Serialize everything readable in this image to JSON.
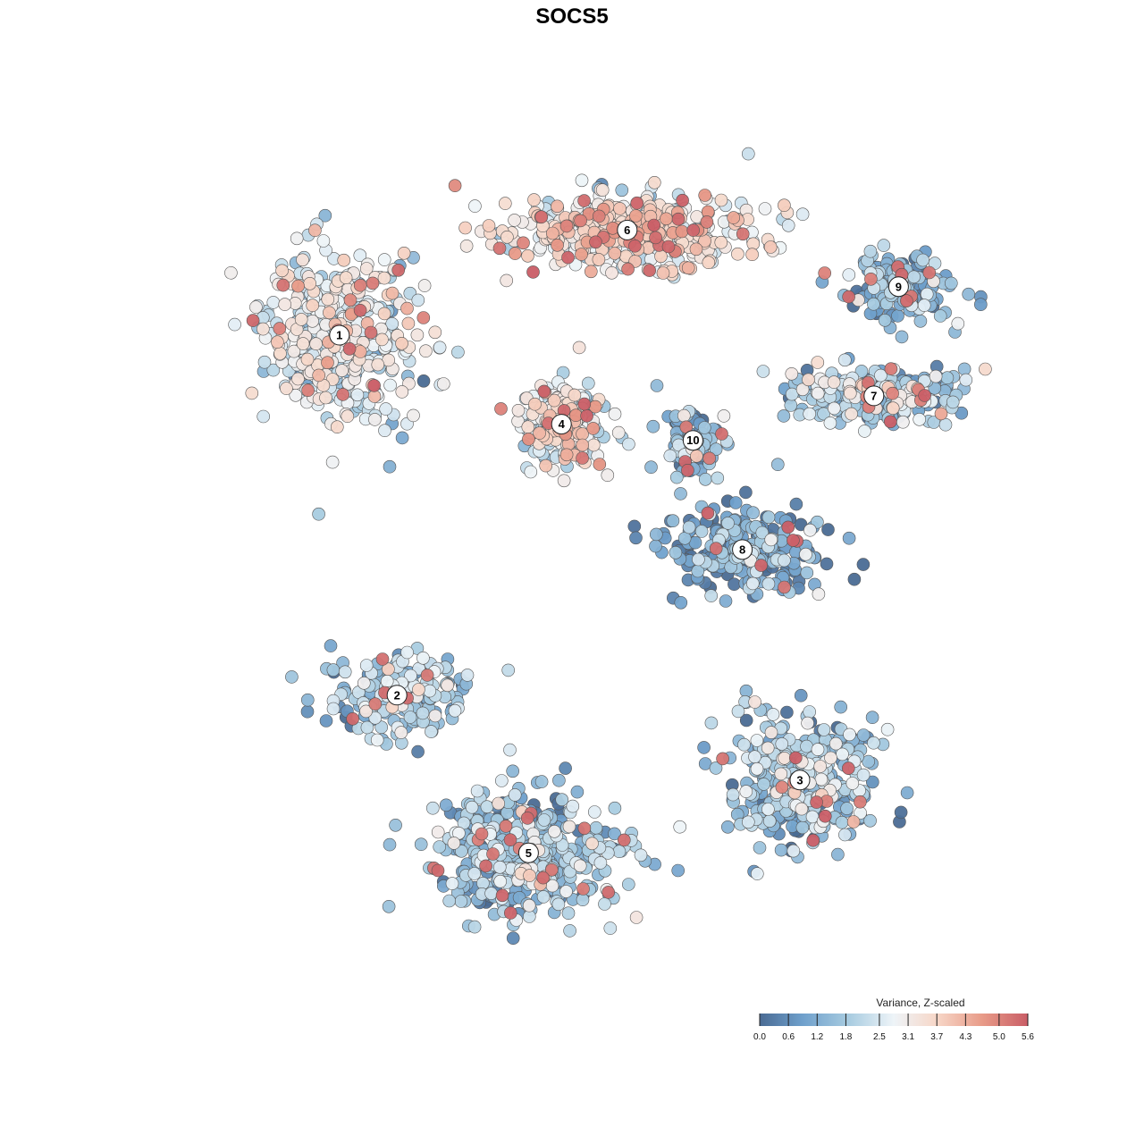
{
  "chart_data": {
    "type": "scatter",
    "title": "SOCS5",
    "xlabel": "",
    "ylabel": "",
    "grid": false,
    "legend_position": "bottom-right",
    "color_scale": {
      "title": "Variance, Z-scaled",
      "min": 0.0,
      "max": 5.6,
      "ticks": [
        "0.0",
        "0.6",
        "1.2",
        "1.8",
        "2.5",
        "3.1",
        "3.7",
        "4.3",
        "5.0",
        "5.6"
      ],
      "tick_values": [
        0.0,
        0.6,
        1.2,
        1.8,
        2.5,
        3.1,
        3.7,
        4.3,
        5.0,
        5.6
      ],
      "colors": [
        "#4a6b94",
        "#6fa0cc",
        "#a7cbe0",
        "#eef4f8",
        "#f7d7c8",
        "#e89b88",
        "#c95d66"
      ]
    },
    "clusters": [
      {
        "label": "1",
        "x": -0.62,
        "y": 0.58,
        "mean_value": 2.6
      },
      {
        "label": "2",
        "x": -0.48,
        "y": -0.31,
        "mean_value": 1.8
      },
      {
        "label": "3",
        "x": 0.5,
        "y": -0.52,
        "mean_value": 1.6
      },
      {
        "label": "4",
        "x": -0.08,
        "y": 0.36,
        "mean_value": 2.7
      },
      {
        "label": "5",
        "x": -0.16,
        "y": -0.7,
        "mean_value": 1.5
      },
      {
        "label": "6",
        "x": 0.08,
        "y": 0.84,
        "mean_value": 3.1
      },
      {
        "label": "7",
        "x": 0.68,
        "y": 0.43,
        "mean_value": 1.8
      },
      {
        "label": "8",
        "x": 0.36,
        "y": 0.05,
        "mean_value": 0.9
      },
      {
        "label": "9",
        "x": 0.74,
        "y": 0.7,
        "mean_value": 1.1
      },
      {
        "label": "10",
        "x": 0.24,
        "y": 0.32,
        "mean_value": 1.3
      }
    ]
  }
}
